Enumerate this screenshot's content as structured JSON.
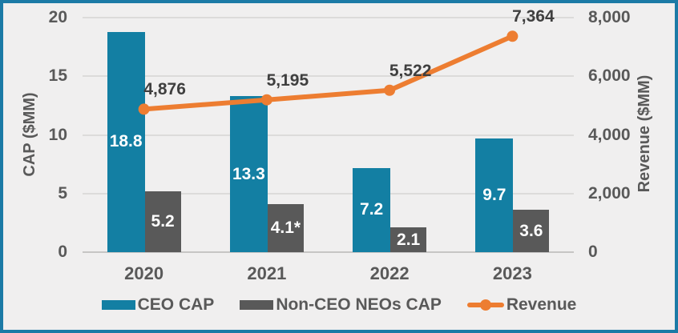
{
  "frame": {
    "background": "#F0EFEF",
    "border_color": "#1C7AA6"
  },
  "colors": {
    "ceo_bar": "#137FA3",
    "non_ceo_bar": "#595959",
    "revenue_line": "#ED7D31",
    "gridline": "#DCDBDA",
    "axis_text": "#595959",
    "line_label_text": "#3F3F3F",
    "bar_label_text": "#FFFFFF"
  },
  "chart_data": {
    "type": "combo",
    "subtype": "grouped-bar-with-line",
    "categories": [
      "2020",
      "2021",
      "2022",
      "2023"
    ],
    "series": [
      {
        "name": "CEO CAP",
        "type": "bar",
        "axis": "left",
        "color": "#137FA3",
        "values": [
          18.8,
          13.3,
          7.2,
          9.7
        ],
        "labels": [
          "18.8",
          "13.3",
          "7.2",
          "9.7"
        ]
      },
      {
        "name": "Non-CEO NEOs CAP",
        "type": "bar",
        "axis": "left",
        "color": "#595959",
        "values": [
          5.2,
          4.1,
          2.1,
          3.6
        ],
        "labels": [
          "5.2",
          "4.1*",
          "2.1",
          "3.6"
        ]
      },
      {
        "name": "Revenue",
        "type": "line",
        "axis": "right",
        "color": "#ED7D31",
        "values": [
          4876,
          5195,
          5522,
          7364
        ],
        "labels": [
          "4,876",
          "5,195",
          "5,522",
          "7,364"
        ]
      }
    ],
    "left_axis": {
      "label": "CAP ($MM)",
      "min": 0,
      "max": 20,
      "tick_values": [
        0,
        5,
        10,
        15,
        20
      ],
      "tick_labels": [
        "0",
        "5",
        "10",
        "15",
        "20"
      ]
    },
    "right_axis": {
      "label": "Revenue ($MM)",
      "min": 0,
      "max": 8000,
      "tick_values": [
        0,
        2000,
        4000,
        6000,
        8000
      ],
      "tick_labels": [
        "0",
        "2,000",
        "4,000",
        "6,000",
        "8,000"
      ]
    },
    "grid": true,
    "legend_position": "bottom",
    "title": "",
    "xlabel": ""
  }
}
